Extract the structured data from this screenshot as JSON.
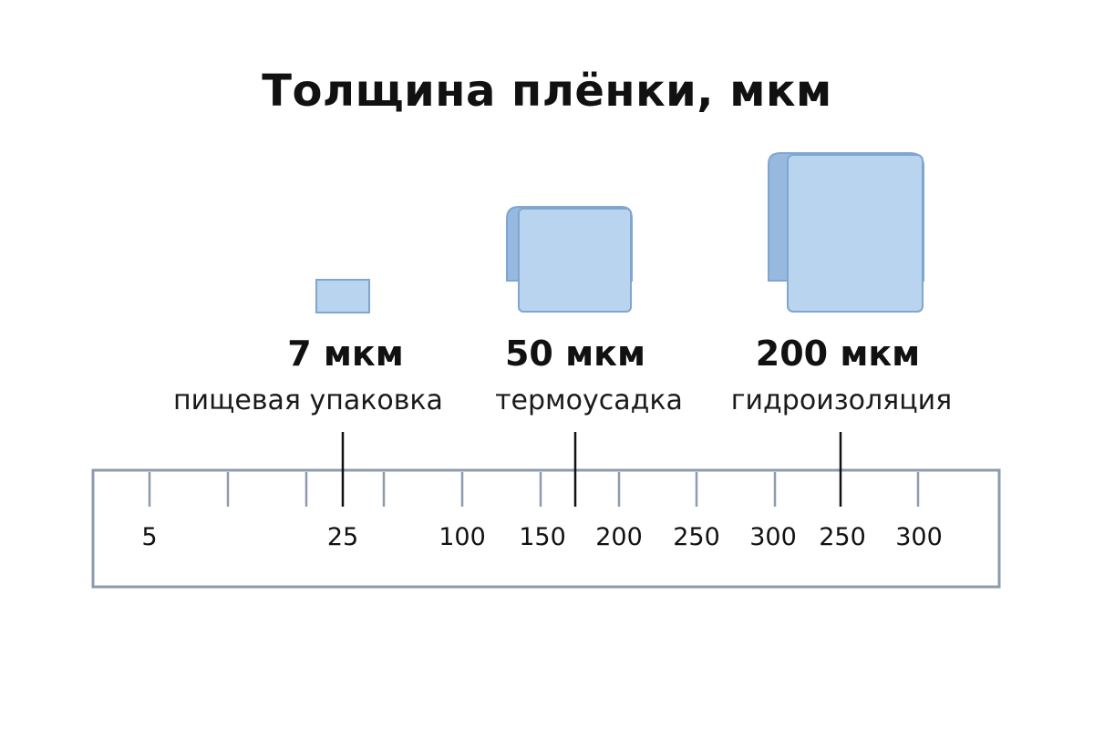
{
  "title": "Толщина плёнки, мкм",
  "colors": {
    "film_fill": "#b9d4ee",
    "film_stroke": "#7fa6cf",
    "film_edge": "#97b9df",
    "ruler_stroke": "#8d9bad",
    "marker": "#111111"
  },
  "films": [
    {
      "thickness_label": "7 мкм",
      "usage": "пищевая упаковка",
      "size": "small",
      "rolled": false
    },
    {
      "thickness_label": "50 мкм",
      "usage": "термоусадка",
      "size": "medium",
      "rolled": true
    },
    {
      "thickness_label": "200 мкм",
      "usage": "гидроизоляция",
      "size": "large",
      "rolled": true
    }
  ],
  "ruler": {
    "tick_labels": [
      "5",
      "25",
      "100",
      "150",
      "200",
      "250",
      "300",
      "250",
      "300"
    ]
  }
}
